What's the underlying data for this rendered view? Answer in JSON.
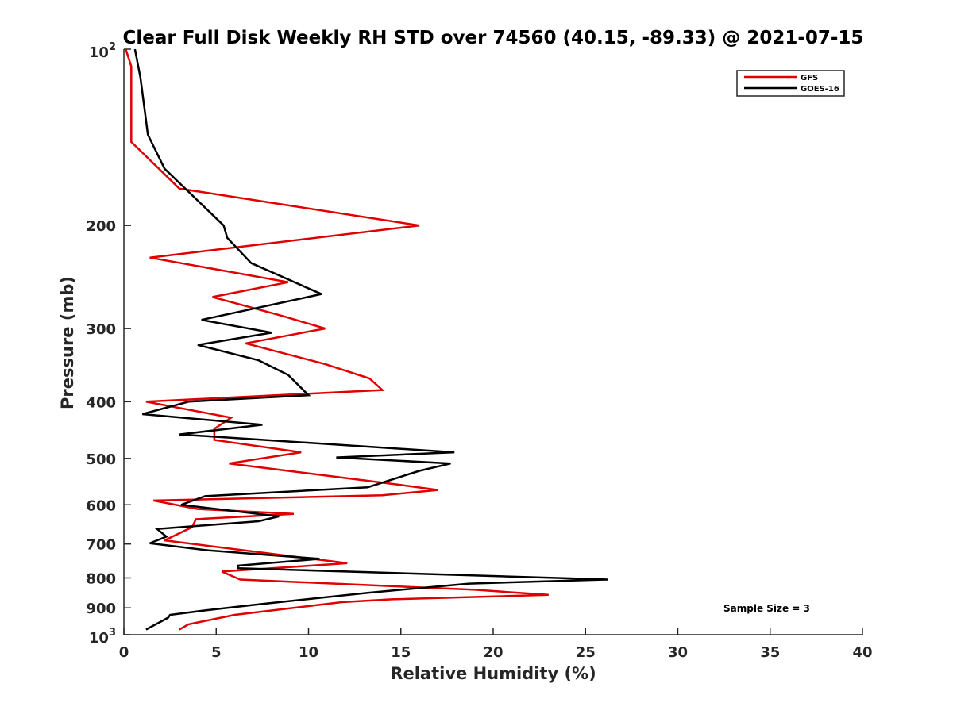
{
  "chart_data": {
    "type": "line",
    "title": "Clear Full Disk Weekly RH STD over 74560 (40.15, -89.33) @ 2021-07-15",
    "xlabel": "Relative Humidity (%)",
    "ylabel": "Pressure (mb)",
    "xlim": [
      0,
      40
    ],
    "ylim": [
      100,
      1000
    ],
    "y_scale": "log",
    "y_reversed": true,
    "grid": false,
    "legend_position": "top-right",
    "x_ticks": [
      0,
      5,
      10,
      15,
      20,
      25,
      30,
      35,
      40
    ],
    "x_tick_labels": [
      "0",
      "5",
      "10",
      "15",
      "20",
      "25",
      "30",
      "35",
      "40"
    ],
    "y_ticks": [
      200,
      300,
      400,
      500,
      600,
      700,
      800,
      900
    ],
    "y_tick_labels": [
      "200",
      "300",
      "400",
      "500",
      "600",
      "700",
      "800",
      "900"
    ],
    "y_decade_labels": [
      {
        "value": 100,
        "base": "10",
        "exp": "2"
      },
      {
        "value": 1000,
        "base": "10",
        "exp": "3"
      }
    ],
    "annotation": "Sample Size = 3",
    "series": [
      {
        "name": "GFS",
        "color": "#e00000",
        "x": [
          0.1,
          0.4,
          0.4,
          3.0,
          16.0,
          1.4,
          8.9,
          4.8,
          8.5,
          10.9,
          6.6,
          10.9,
          13.3,
          14.0,
          1.2,
          5.8,
          4.9,
          4.9,
          9.6,
          5.7,
          15.0,
          17.0,
          14.0,
          1.6,
          4.0,
          9.2,
          3.9,
          3.7,
          2.2,
          12.1,
          5.3,
          6.3,
          19.0,
          23.0,
          14.5,
          11.8,
          6.0,
          3.5,
          3.0
        ],
        "y": [
          100,
          107,
          144,
          173,
          200,
          227,
          250,
          265,
          285,
          300,
          318,
          345,
          365,
          382,
          400,
          426,
          445,
          465,
          488,
          510,
          555,
          566,
          578,
          590,
          610,
          622,
          635,
          655,
          690,
          755,
          780,
          805,
          838,
          855,
          870,
          880,
          925,
          960,
          980
        ]
      },
      {
        "name": "GOES-16",
        "color": "#000000",
        "x": [
          0.6,
          0.9,
          1.3,
          2.2,
          5.4,
          5.6,
          6.9,
          10.7,
          4.2,
          8.0,
          4.0,
          7.3,
          8.9,
          10.0,
          3.5,
          1.0,
          7.5,
          3.0,
          17.9,
          11.5,
          17.7,
          16.0,
          13.2,
          4.4,
          3.1,
          8.4,
          7.3,
          1.8,
          2.3,
          1.4,
          4.6,
          10.6,
          6.2,
          6.2,
          26.2,
          18.7,
          13.2,
          7.5,
          4.5,
          2.5,
          2.4,
          1.2
        ],
        "y": [
          100,
          112,
          140,
          160,
          200,
          210,
          232,
          262,
          290,
          305,
          320,
          340,
          360,
          390,
          400,
          420,
          438,
          455,
          488,
          498,
          510,
          525,
          560,
          580,
          600,
          628,
          640,
          660,
          680,
          698,
          718,
          742,
          762,
          770,
          805,
          818,
          848,
          886,
          908,
          925,
          935,
          980
        ]
      }
    ]
  }
}
